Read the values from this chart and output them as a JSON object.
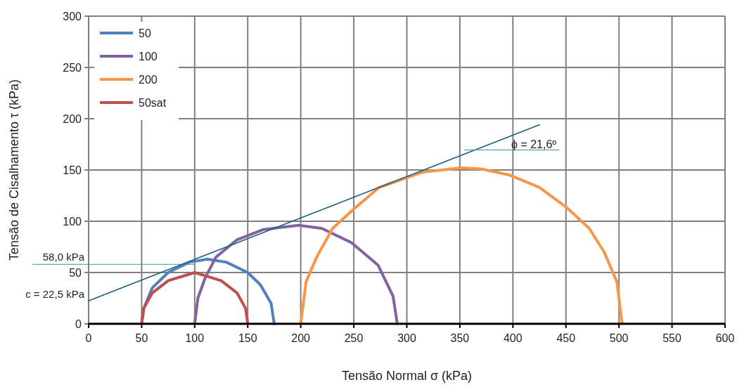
{
  "chart_data": {
    "type": "line",
    "xlabel": "Tensão Normal σ (kPa)",
    "ylabel": "Tensão de Cisalhamento  τ  (kPa)",
    "xlim": [
      0,
      600
    ],
    "xticks": [
      0,
      50,
      100,
      150,
      200,
      250,
      300,
      350,
      400,
      450,
      500,
      550,
      600
    ],
    "ylim": [
      0,
      300
    ],
    "yticks": [
      0,
      50,
      100,
      150,
      200,
      250,
      300
    ],
    "grid": true,
    "legend": "top left",
    "marker": "none",
    "line_style": "solid",
    "series": [
      {
        "name": "50",
        "color": "#4f81bd",
        "x": [
          50,
          52,
          60,
          75,
          95,
          112,
          130,
          150,
          162,
          172,
          175
        ],
        "values": [
          0,
          15,
          35,
          50,
          60,
          63,
          60,
          50,
          38,
          20,
          0
        ]
      },
      {
        "name": "100",
        "color": "#8064a2",
        "x": [
          100,
          103,
          110,
          120,
          140,
          165,
          198,
          220,
          248,
          273,
          287,
          291
        ],
        "values": [
          0,
          25,
          45,
          65,
          82,
          92,
          96,
          93,
          79,
          57,
          27,
          0
        ]
      },
      {
        "name": "200",
        "color": "#f79646",
        "x": [
          200,
          205,
          215,
          230,
          250,
          274,
          315,
          351,
          370,
          397,
          425,
          450,
          472,
          486,
          498,
          503
        ],
        "values": [
          0,
          41,
          65,
          93,
          112,
          133,
          148,
          152,
          151,
          145,
          133,
          114,
          93,
          70,
          41,
          0
        ]
      },
      {
        "name": "50sat",
        "color": "#c0504d",
        "x": [
          50,
          52,
          60,
          75,
          100,
          125,
          140,
          148,
          150
        ],
        "values": [
          0,
          15,
          30,
          42,
          50,
          42,
          30,
          15,
          0
        ]
      },
      {
        "color": "#1b6280",
        "x": [
          0,
          425
        ],
        "values": [
          22.5,
          194
        ]
      }
    ],
    "ref_lines": [
      {
        "axis": "y",
        "value": 58,
        "label": "58,0 kPa",
        "color": "#4a90b0"
      }
    ],
    "annotations": [
      {
        "text": "c = 22,5 kPa",
        "x": 0,
        "y": 22.5
      },
      "ϕ = 21,6º"
    ]
  }
}
